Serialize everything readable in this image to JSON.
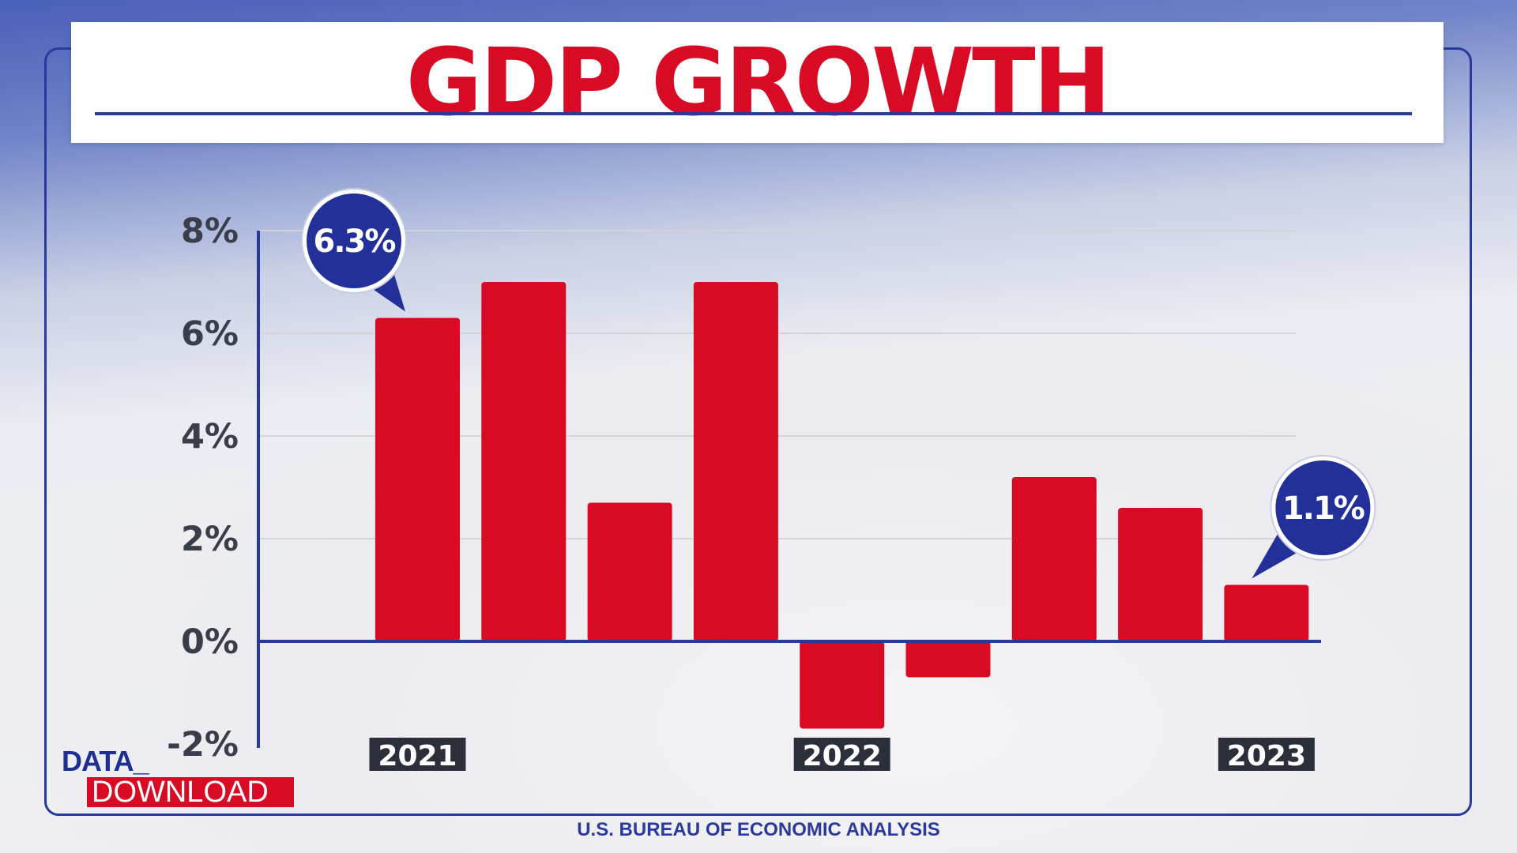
{
  "title": "GDP GROWTH",
  "source": "U.S. BUREAU OF ECONOMIC ANALYSIS",
  "logo": {
    "line1": "DATA_",
    "line2": "DOWNLOAD"
  },
  "colors": {
    "bar": "#d90a23",
    "axis": "#2a3a9c",
    "callout": "#23309a",
    "year_box": "#2b2f3a"
  },
  "chart_data": {
    "type": "bar",
    "title": "GDP GROWTH",
    "xlabel": "",
    "ylabel": "",
    "ylim": [
      -2,
      8
    ],
    "y_ticks": [
      "8%",
      "6%",
      "4%",
      "2%",
      "0%",
      "-2%"
    ],
    "y_tick_values": [
      8,
      6,
      4,
      2,
      0,
      -2
    ],
    "grid": true,
    "values": [
      6.3,
      7.0,
      2.7,
      7.0,
      -1.7,
      -0.7,
      3.2,
      2.6,
      1.1
    ],
    "year_labels": [
      {
        "label": "2021",
        "bar_index": 0
      },
      {
        "label": "2022",
        "bar_index": 4
      },
      {
        "label": "2023",
        "bar_index": 8
      }
    ],
    "callouts": [
      {
        "text": "6.3%",
        "bar_index": 0
      },
      {
        "text": "1.1%",
        "bar_index": 8
      }
    ]
  }
}
